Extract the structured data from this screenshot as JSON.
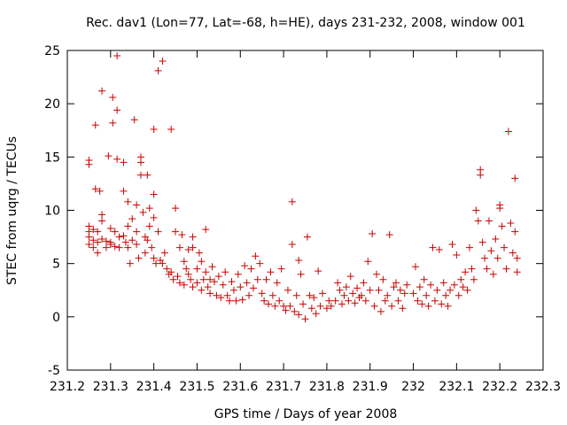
{
  "chart_data": {
    "type": "scatter",
    "title": "Rec. dav1 (Lon=77, Lat=-68, h=HE), days 231-232, 2008, window 001",
    "xlabel": "GPS time / Days of year 2008",
    "ylabel": "STEC from uqrg / TECUs",
    "xlim": [
      231.2,
      232.3
    ],
    "ylim": [
      -5,
      25
    ],
    "xticks": [
      "231.2",
      "231.3",
      "231.4",
      "231.5",
      "231.6",
      "231.7",
      "231.8",
      "231.9",
      "232",
      "232.1",
      "232.2",
      "232.3"
    ],
    "yticks": [
      "-5",
      "0",
      "5",
      "10",
      "15",
      "20",
      "25"
    ],
    "grid": false,
    "legend": "none",
    "marker": "plus",
    "color": "#cc0000",
    "series": [
      {
        "points": [
          [
            231.25,
            14.7
          ],
          [
            231.25,
            14.3
          ],
          [
            231.25,
            8.5
          ],
          [
            231.25,
            8.0
          ],
          [
            231.25,
            7.5
          ],
          [
            231.25,
            6.8
          ],
          [
            231.26,
            7.2
          ],
          [
            231.26,
            8.2
          ],
          [
            231.26,
            6.5
          ],
          [
            231.265,
            18.0
          ],
          [
            231.265,
            12.0
          ],
          [
            231.27,
            8.0
          ],
          [
            231.27,
            7.0
          ],
          [
            231.27,
            6.0
          ],
          [
            231.275,
            11.8
          ],
          [
            231.28,
            21.2
          ],
          [
            231.28,
            9.6
          ],
          [
            231.28,
            9.0
          ],
          [
            231.28,
            7.3
          ],
          [
            231.29,
            7.1
          ],
          [
            231.29,
            6.5
          ],
          [
            231.295,
            15.1
          ],
          [
            231.3,
            8.3
          ],
          [
            231.3,
            7.0
          ],
          [
            231.3,
            6.8
          ],
          [
            231.305,
            20.6
          ],
          [
            231.305,
            18.2
          ],
          [
            231.31,
            8.0
          ],
          [
            231.31,
            6.6
          ],
          [
            231.315,
            24.5
          ],
          [
            231.315,
            19.4
          ],
          [
            231.315,
            14.8
          ],
          [
            231.32,
            7.5
          ],
          [
            231.32,
            6.5
          ],
          [
            231.33,
            14.5
          ],
          [
            231.33,
            11.8
          ],
          [
            231.33,
            7.6
          ],
          [
            231.335,
            7.0
          ],
          [
            231.34,
            10.8
          ],
          [
            231.34,
            8.5
          ],
          [
            231.34,
            6.5
          ],
          [
            231.345,
            5.0
          ],
          [
            231.35,
            9.2
          ],
          [
            231.35,
            7.2
          ],
          [
            231.355,
            18.5
          ],
          [
            231.36,
            10.5
          ],
          [
            231.36,
            8.0
          ],
          [
            231.36,
            6.8
          ],
          [
            231.365,
            5.5
          ],
          [
            231.37,
            15.0
          ],
          [
            231.37,
            14.5
          ],
          [
            231.37,
            13.3
          ],
          [
            231.375,
            9.8
          ],
          [
            231.38,
            7.5
          ],
          [
            231.38,
            6.0
          ],
          [
            231.385,
            13.3
          ],
          [
            231.385,
            7.2
          ],
          [
            231.39,
            10.2
          ],
          [
            231.39,
            8.5
          ],
          [
            231.395,
            6.5
          ],
          [
            231.4,
            17.6
          ],
          [
            231.4,
            11.5
          ],
          [
            231.4,
            9.3
          ],
          [
            231.4,
            5.5
          ],
          [
            231.405,
            5.0
          ],
          [
            231.41,
            23.1
          ],
          [
            231.41,
            8.0
          ],
          [
            231.415,
            5.3
          ],
          [
            231.42,
            24.0
          ],
          [
            231.42,
            5.0
          ],
          [
            231.425,
            6.0
          ],
          [
            231.43,
            4.5
          ],
          [
            231.435,
            4.0
          ],
          [
            231.44,
            17.6
          ],
          [
            231.44,
            4.2
          ],
          [
            231.445,
            3.5
          ],
          [
            231.45,
            10.2
          ],
          [
            231.45,
            8.0
          ],
          [
            231.455,
            3.8
          ],
          [
            231.46,
            6.5
          ],
          [
            231.46,
            3.2
          ],
          [
            231.465,
            7.7
          ],
          [
            231.47,
            5.2
          ],
          [
            231.47,
            3.0
          ],
          [
            231.475,
            4.5
          ],
          [
            231.48,
            6.3
          ],
          [
            231.48,
            4.0
          ],
          [
            231.485,
            3.5
          ],
          [
            231.49,
            7.5
          ],
          [
            231.49,
            6.5
          ],
          [
            231.49,
            2.8
          ],
          [
            231.5,
            4.5
          ],
          [
            231.5,
            3.2
          ],
          [
            231.505,
            6.0
          ],
          [
            231.51,
            5.2
          ],
          [
            231.51,
            2.5
          ],
          [
            231.515,
            3.5
          ],
          [
            231.52,
            8.2
          ],
          [
            231.52,
            4.2
          ],
          [
            231.525,
            2.8
          ],
          [
            231.53,
            3.5
          ],
          [
            231.53,
            2.2
          ],
          [
            231.535,
            4.7
          ],
          [
            231.54,
            3.3
          ],
          [
            231.545,
            2.0
          ],
          [
            231.55,
            3.8
          ],
          [
            231.555,
            1.8
          ],
          [
            231.56,
            3.0
          ],
          [
            231.565,
            4.2
          ],
          [
            231.57,
            2.0
          ],
          [
            231.575,
            1.5
          ],
          [
            231.58,
            3.3
          ],
          [
            231.585,
            2.5
          ],
          [
            231.59,
            1.5
          ],
          [
            231.595,
            4.0
          ],
          [
            231.6,
            2.8
          ],
          [
            231.605,
            1.6
          ],
          [
            231.61,
            4.8
          ],
          [
            231.615,
            3.2
          ],
          [
            231.62,
            2.0
          ],
          [
            231.625,
            4.5
          ],
          [
            231.63,
            2.7
          ],
          [
            231.635,
            5.7
          ],
          [
            231.64,
            3.5
          ],
          [
            231.645,
            5.0
          ],
          [
            231.65,
            2.2
          ],
          [
            231.655,
            1.5
          ],
          [
            231.66,
            3.5
          ],
          [
            231.665,
            1.2
          ],
          [
            231.67,
            4.2
          ],
          [
            231.675,
            2.0
          ],
          [
            231.68,
            1.0
          ],
          [
            231.685,
            3.2
          ],
          [
            231.69,
            1.5
          ],
          [
            231.695,
            4.5
          ],
          [
            231.7,
            1.0
          ],
          [
            231.705,
            0.6
          ],
          [
            231.71,
            2.5
          ],
          [
            231.715,
            1.0
          ],
          [
            231.72,
            10.8
          ],
          [
            231.72,
            6.8
          ],
          [
            231.725,
            0.5
          ],
          [
            231.73,
            2.0
          ],
          [
            231.735,
            5.3
          ],
          [
            231.735,
            0.2
          ],
          [
            231.74,
            4.0
          ],
          [
            231.745,
            1.2
          ],
          [
            231.75,
            -0.2
          ],
          [
            231.755,
            7.5
          ],
          [
            231.76,
            2.0
          ],
          [
            231.765,
            0.8
          ],
          [
            231.77,
            1.8
          ],
          [
            231.775,
            0.3
          ],
          [
            231.78,
            4.3
          ],
          [
            231.785,
            1.0
          ],
          [
            231.79,
            2.2
          ],
          [
            231.8,
            0.8
          ],
          [
            231.805,
            1.5
          ],
          [
            231.81,
            1.0
          ],
          [
            231.82,
            1.5
          ],
          [
            231.825,
            3.2
          ],
          [
            231.83,
            2.5
          ],
          [
            231.835,
            1.2
          ],
          [
            231.84,
            2.0
          ],
          [
            231.845,
            2.8
          ],
          [
            231.85,
            1.5
          ],
          [
            231.855,
            3.8
          ],
          [
            231.86,
            2.2
          ],
          [
            231.865,
            1.3
          ],
          [
            231.87,
            2.7
          ],
          [
            231.875,
            1.8
          ],
          [
            231.88,
            2.0
          ],
          [
            231.885,
            3.2
          ],
          [
            231.89,
            1.5
          ],
          [
            231.895,
            5.2
          ],
          [
            231.9,
            2.5
          ],
          [
            231.905,
            7.8
          ],
          [
            231.91,
            1.0
          ],
          [
            231.915,
            4.0
          ],
          [
            231.92,
            2.5
          ],
          [
            231.925,
            0.5
          ],
          [
            231.93,
            3.5
          ],
          [
            231.935,
            1.5
          ],
          [
            231.94,
            2.0
          ],
          [
            231.945,
            7.7
          ],
          [
            231.95,
            1.0
          ],
          [
            231.955,
            2.8
          ],
          [
            231.96,
            3.2
          ],
          [
            231.965,
            1.5
          ],
          [
            231.97,
            2.5
          ],
          [
            231.975,
            0.8
          ],
          [
            231.98,
            2.2
          ],
          [
            231.985,
            3.0
          ],
          [
            232.0,
            2.2
          ],
          [
            232.005,
            4.7
          ],
          [
            232.01,
            1.5
          ],
          [
            232.015,
            2.8
          ],
          [
            232.02,
            1.2
          ],
          [
            232.025,
            3.5
          ],
          [
            232.03,
            2.0
          ],
          [
            232.035,
            1.0
          ],
          [
            232.04,
            3.0
          ],
          [
            232.045,
            6.5
          ],
          [
            232.05,
            1.5
          ],
          [
            232.055,
            2.5
          ],
          [
            232.06,
            6.3
          ],
          [
            232.065,
            1.2
          ],
          [
            232.07,
            3.2
          ],
          [
            232.075,
            2.0
          ],
          [
            232.08,
            1.0
          ],
          [
            232.085,
            2.5
          ],
          [
            232.09,
            6.8
          ],
          [
            232.095,
            3.0
          ],
          [
            232.1,
            5.8
          ],
          [
            232.105,
            2.0
          ],
          [
            232.11,
            3.5
          ],
          [
            232.115,
            2.8
          ],
          [
            232.12,
            4.2
          ],
          [
            232.125,
            2.5
          ],
          [
            232.13,
            6.5
          ],
          [
            232.135,
            4.5
          ],
          [
            232.14,
            3.5
          ],
          [
            232.145,
            10.0
          ],
          [
            232.15,
            9.0
          ],
          [
            232.155,
            13.8
          ],
          [
            232.155,
            13.3
          ],
          [
            232.16,
            7.0
          ],
          [
            232.165,
            5.5
          ],
          [
            232.17,
            4.5
          ],
          [
            232.175,
            9.0
          ],
          [
            232.18,
            6.2
          ],
          [
            232.185,
            4.0
          ],
          [
            232.19,
            7.3
          ],
          [
            232.195,
            5.5
          ],
          [
            232.2,
            10.5
          ],
          [
            232.2,
            10.2
          ],
          [
            232.205,
            8.5
          ],
          [
            232.21,
            6.5
          ],
          [
            232.215,
            4.5
          ],
          [
            232.22,
            17.4
          ],
          [
            232.225,
            8.8
          ],
          [
            232.23,
            6.0
          ],
          [
            232.235,
            13.0
          ],
          [
            232.235,
            8.0
          ],
          [
            232.24,
            5.5
          ],
          [
            232.24,
            4.2
          ]
        ]
      }
    ]
  }
}
